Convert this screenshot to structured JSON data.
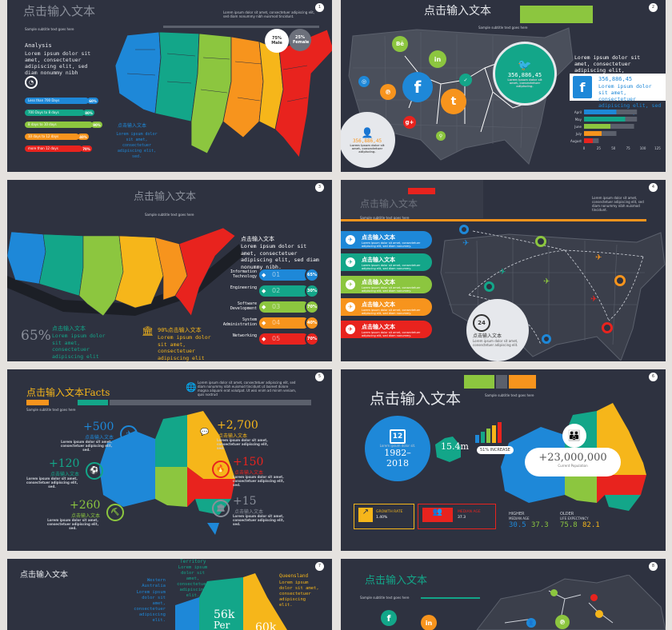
{
  "colors": {
    "blue": "#1e88d8",
    "teal": "#13a689",
    "green": "#8cc63f",
    "yellow": "#f6b61a",
    "orange": "#f7941d",
    "red": "#e8231e",
    "bg": "#2e3240"
  },
  "s1": {
    "title": "点击输入文本",
    "subtitle": "Sample subtitle text goes here",
    "head_text": "Lorem ipsum dolor sit amet, consectetuer adipiscing elit, sed diam nonummy nibh euismod tincidunt.",
    "analysis": "Analysis",
    "body": "Lorem ipsum dolor sit amet, consectetuer adipiscing elit, sed diam nonummy nibh",
    "male": "75% Male",
    "female": "25% Female",
    "legend": [
      "Less than 700 Days",
      "700 Days to 8 days",
      "8 days to 10 days",
      "10 days to 12 days",
      "more than 12 days"
    ],
    "legend_pct": [
      "60%",
      "80%",
      "90%",
      "40%",
      "70%"
    ],
    "map_label": "点击输入文本",
    "map_body": "Lorem ipsum dolor sit amet, consectetuer adipiscing elit, sed."
  },
  "s2": {
    "title": "点击输入文本",
    "subtitle": "Sample subtitle text goes here",
    "stat_green": "356,886,45",
    "stat_grey": "356,886,45",
    "circle_body": "Lorem ipsum dolor sit amet, consectetuer adipiscing.",
    "right_text": "Lorem ipsum dolor sit amet, consectetuer adipiscing elit,",
    "fb_stat": "356,886,45",
    "fb_body": "Lorem ipsum dolor sit amet, consectetuer adipiscing elit, sed diam nonummy",
    "months": [
      "April",
      "May",
      "June",
      "July",
      "August"
    ],
    "axis": [
      "0",
      "25",
      "50",
      "75",
      "100",
      "125"
    ],
    "chart_data": {
      "type": "bar",
      "categories": [
        "April",
        "May",
        "June",
        "July",
        "August"
      ],
      "series": [
        {
          "values": [
            55,
            70,
            45,
            30,
            15
          ]
        },
        {
          "values": [
            35,
            20,
            40,
            25,
            10
          ]
        }
      ],
      "xlim": [
        0,
        125
      ]
    }
  },
  "s3": {
    "title": "点击输入文本",
    "subtitle": "Sample subtitle text goes here",
    "label": "点击输入文本",
    "body": "Lorem ipsum dolor sit amet, consectetuer adipiscing elit, sed diam nonummy nibh.",
    "big_pct": "65%",
    "left_label": "点击输入文本",
    "left_body": "Lorem ipsum dolor sit amet, consectetuer adipiscing elit",
    "mid_label": "90%点击输入文本",
    "mid_body": "Lorem ipsum dolor sit amet, consectetuer adipiscing elit",
    "rows": [
      {
        "name": "Information Technology",
        "num": "01",
        "pct": "65%",
        "color": "#1e88d8"
      },
      {
        "name": "Engineering",
        "num": "02",
        "pct": "30%",
        "color": "#13a689"
      },
      {
        "name": "Software Development",
        "num": "03",
        "pct": "70%",
        "color": "#8cc63f"
      },
      {
        "name": "System Administration",
        "num": "04",
        "pct": "40%",
        "color": "#f7941d"
      },
      {
        "name": "Networking",
        "num": "05",
        "pct": "70%",
        "color": "#e8231e"
      }
    ]
  },
  "s4": {
    "title": "点击输入文本",
    "subtitle": "Sample subtitle text goes here",
    "right_text": "Lorem ipsum dolor sit amet, consectetuer adipiscing elit, sed diam nonummy nibh euismod tincidunt.",
    "items": [
      {
        "label": "点击输入文本",
        "body": "Lorem ipsum dolor sit amet, consectetuer adipiscing elit, sed diam nonummy.",
        "color": "#1e88d8"
      },
      {
        "label": "点击输入文本",
        "body": "Lorem ipsum dolor sit amet, consectetuer adipiscing elit, sed diam nonummy.",
        "color": "#13a689"
      },
      {
        "label": "点击输入文本",
        "body": "Lorem ipsum dolor sit amet, consectetuer adipiscing elit, sed diam nonummy.",
        "color": "#8cc63f"
      },
      {
        "label": "点击输入文本",
        "body": "Lorem ipsum dolor sit amet, consectetuer adipiscing elit, sed diam nonummy.",
        "color": "#f7941d"
      },
      {
        "label": "点击输入文本",
        "body": "Lorem ipsum dolor sit amet, consectetuer adipiscing elit, sed diam nonummy.",
        "color": "#e8231e"
      }
    ],
    "clock": "24",
    "clock_label": "点击输入文本",
    "clock_body": "Lorem ipsum dolor sit amet, consectetuer adipiscing elit."
  },
  "s5": {
    "title": "点击输入文本Facts",
    "subtitle": "Sample subtitle text goes here",
    "head_text": "Lorem ipsum dolor sit amet, consectetuer adipiscing elit, sed diam nonummy nibh euismod tincidunt ut laoreet dolore magna aliquam erat volutpat. Ut wisi enim ad minim veniam, quis nostrud",
    "stats": [
      {
        "num": "+500",
        "label": "点击输入文本",
        "body": "Lorem ipsum dolor sit amet, consectetuer adipiscing elit, sed.",
        "color": "#1e88d8"
      },
      {
        "num": "+120",
        "label": "点击输入文本",
        "body": "Lorem ipsum dolor sit amet, consectetuer adipiscing elit, sed.",
        "color": "#13a689"
      },
      {
        "num": "+260",
        "label": "点击输入文本",
        "body": "Lorem ipsum dolor sit amet, consectetuer adipiscing elit, sed.",
        "color": "#8cc63f"
      },
      {
        "num": "+2,700",
        "label": "点击输入文本",
        "body": "Lorem ipsum dolor sit amet, consectetuer adipiscing elit, sed.",
        "color": "#f6b61a"
      },
      {
        "num": "+150",
        "label": "点击输入文本",
        "body": "Lorem ipsum dolor sit amet, consectetuer adipiscing elit, sed.",
        "color": "#e8231e"
      },
      {
        "num": "+15",
        "label": "点击输入文本",
        "body": "Lorem ipsum dolor sit amet, consectetuer adipiscing elit, sed.",
        "color": "#8a8f9a"
      }
    ]
  },
  "s6": {
    "title": "点击输入文本",
    "subtitle": "Sample subtitle text goes here",
    "cal_day": "12",
    "years": "1982–2018",
    "lorem_small": "Lorem ipsum dolor sit.",
    "dist": "15.4m",
    "increase": "51% INCREASE",
    "population": "+23,000,000",
    "pop_label": "Current Population",
    "growth": "GROWTH RATE",
    "growth_val": "1.40%",
    "median": "MEDIAN AGE",
    "median_val": "37.3",
    "higher": "HIGHER",
    "median_income": "MEDIAN AGE",
    "older": "OLDER",
    "life": "LIFE EXPECTANCY",
    "v1": "30.5",
    "v2": "37.3",
    "v3": "75.8",
    "v4": "82.1"
  },
  "s7": {
    "title": "点击输入文本",
    "territory": "Territory",
    "territory_body": "Lorem ipsum dolor sit amet, consectetuer adipiscing elit.",
    "western": "Western Australia",
    "western_body": "Lorem ipsum dolor sit amet, consectetuer adipiscing elit.",
    "queensland": "Queensland",
    "queensland_body": "Lorem ipsum dolor sit amet, consectetuer adipiscing elit.",
    "big1": "56k",
    "big1b": "Per",
    "big2": "60k"
  },
  "s8": {
    "title": "点击输入文本",
    "subtitle": "Sample subtitle text goes here"
  }
}
